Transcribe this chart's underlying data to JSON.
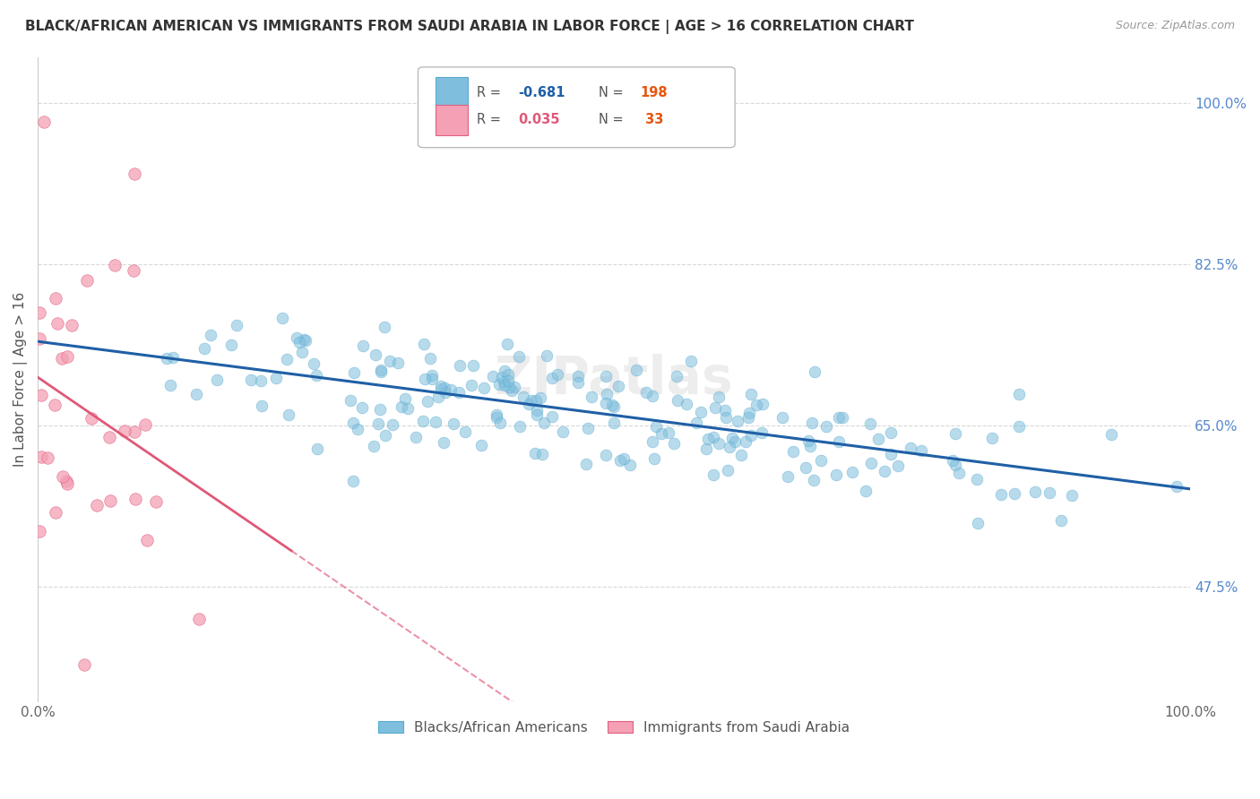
{
  "title": "BLACK/AFRICAN AMERICAN VS IMMIGRANTS FROM SAUDI ARABIA IN LABOR FORCE | AGE > 16 CORRELATION CHART",
  "source": "Source: ZipAtlas.com",
  "ylabel": "In Labor Force | Age > 16",
  "xlim": [
    0.0,
    1.0
  ],
  "ylim": [
    0.35,
    1.05
  ],
  "ytick_vals": [
    0.475,
    0.65,
    0.825,
    1.0
  ],
  "ytick_labels": [
    "47.5%",
    "65.0%",
    "82.5%",
    "100.0%"
  ],
  "xtick_vals": [
    0.0,
    1.0
  ],
  "xtick_labels": [
    "0.0%",
    "100.0%"
  ],
  "blue_color": "#7fbfdd",
  "blue_edge": "#5aaad0",
  "blue_line_color": "#1f5fa6",
  "pink_color": "#f4a0b5",
  "pink_edge": "#e06080",
  "pink_line_color": "#e05878",
  "n_blue": 198,
  "n_pink": 33,
  "r_blue": -0.681,
  "r_pink": 0.035,
  "blue_seed": 42,
  "pink_seed": 7,
  "background_color": "#ffffff",
  "grid_color": "#d8d8d8",
  "watermark": "ZIPatlas",
  "legend_label_blue": "Blacks/African Americans",
  "legend_label_pink": "Immigrants from Saudi Arabia"
}
